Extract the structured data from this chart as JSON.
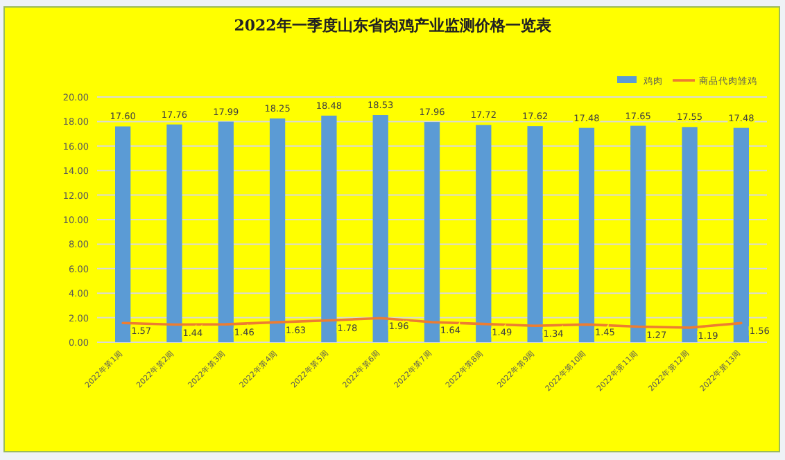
{
  "chart_data": {
    "type": "bar",
    "title": "2022年一季度山东省肉鸡产业监测价格一览表",
    "categories": [
      "2022年第1周",
      "2022年第2周",
      "2022年第3周",
      "2022年第4周",
      "2022年第5周",
      "2022年第6周",
      "2022年第7周",
      "2022年第8周",
      "2022年第9周",
      "2022年第10周",
      "2022年第11周",
      "2022年第12周",
      "2022年第13周"
    ],
    "series": [
      {
        "name": "鸡肉",
        "color": "#5b9bd5",
        "values": [
          17.6,
          17.76,
          17.99,
          18.25,
          18.48,
          18.53,
          17.96,
          17.72,
          17.62,
          17.48,
          17.65,
          17.55,
          17.48
        ],
        "value_labels": [
          "17.60",
          "17.76",
          "17.99",
          "18.25",
          "18.48",
          "18.53",
          "17.96",
          "17.72",
          "17.62",
          "17.48",
          "17.65",
          "17.55",
          "17.48"
        ]
      },
      {
        "name": "商品代肉雏鸡",
        "type": "line",
        "color": "#ed7d31",
        "values": [
          1.57,
          1.44,
          1.46,
          1.63,
          1.78,
          1.96,
          1.64,
          1.49,
          1.34,
          1.45,
          1.27,
          1.19,
          1.56
        ],
        "value_labels": [
          "1.57",
          "1.44",
          "1.46",
          "1.63",
          "1.78",
          "1.96",
          "1.64",
          "1.49",
          "1.34",
          "1.45",
          "1.27",
          "1.19",
          "1.56"
        ]
      }
    ],
    "ylim": [
      0,
      20
    ],
    "yticks": [
      {
        "value": 0,
        "label": "0.00"
      },
      {
        "value": 2,
        "label": "2.00"
      },
      {
        "value": 4,
        "label": "4.00"
      },
      {
        "value": 6,
        "label": "6.00"
      },
      {
        "value": 8,
        "label": "8.00"
      },
      {
        "value": 10,
        "label": "10.00"
      },
      {
        "value": 12,
        "label": "12.00"
      },
      {
        "value": 14,
        "label": "14.00"
      },
      {
        "value": 16,
        "label": "16.00"
      },
      {
        "value": 18,
        "label": "18.00"
      },
      {
        "value": 20,
        "label": "20.00"
      }
    ],
    "grid": "y",
    "legend": "top right",
    "marker": "none"
  }
}
